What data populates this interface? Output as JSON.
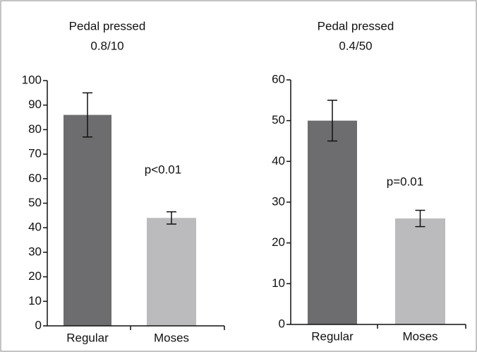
{
  "chart_data": [
    {
      "type": "bar",
      "title": "Pedal pressed",
      "subtitle": "0.8/10",
      "categories": [
        "Regular",
        "Moses"
      ],
      "values": [
        86,
        44
      ],
      "errors": [
        9,
        2.5
      ],
      "colors": [
        "#6d6d6f",
        "#bbbbbd"
      ],
      "annotation": "p<0.01",
      "ylim": [
        0,
        100
      ],
      "yticks": [
        0,
        10,
        20,
        30,
        40,
        50,
        60,
        70,
        80,
        90,
        100
      ]
    },
    {
      "type": "bar",
      "title": "Pedal pressed",
      "subtitle": "0.4/50",
      "categories": [
        "Regular",
        "Moses"
      ],
      "values": [
        50,
        26
      ],
      "errors": [
        5,
        2
      ],
      "colors": [
        "#6d6d6f",
        "#bbbbbd"
      ],
      "annotation": "p=0.01",
      "ylim": [
        0,
        60
      ],
      "yticks": [
        0,
        10,
        20,
        30,
        40,
        50,
        60
      ]
    }
  ]
}
